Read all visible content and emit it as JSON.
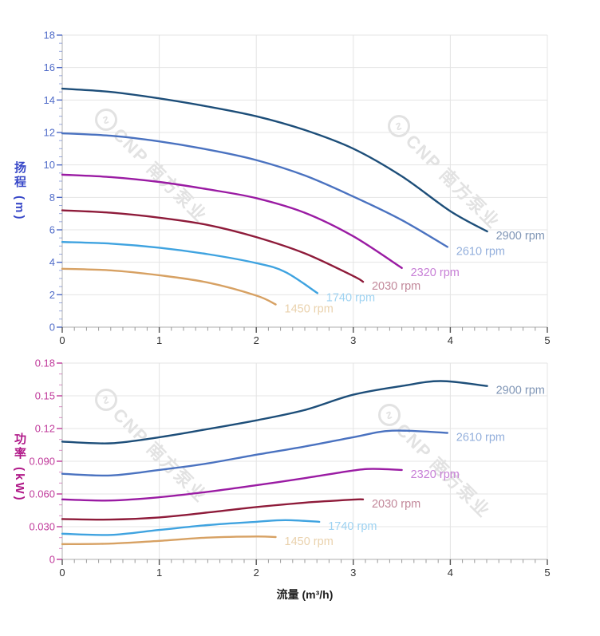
{
  "watermark": {
    "text": "CNP 南方泵业",
    "symbol": "∿"
  },
  "chart_data": [
    {
      "type": "line",
      "title": "",
      "xlabel": "流量 (m³/h)",
      "ylabel": "扬程 (m)",
      "xlim": [
        0,
        5
      ],
      "ylim": [
        0,
        18
      ],
      "x_ticks": [
        "0",
        "1",
        "2",
        "3",
        "4",
        "5"
      ],
      "x_tick_values": [
        0,
        1,
        2,
        3,
        4,
        5
      ],
      "x_minor_step": 0.125,
      "y_ticks": [
        "0",
        "2",
        "4",
        "6",
        "8",
        "10",
        "12",
        "14",
        "16",
        "18"
      ],
      "y_tick_values": [
        0,
        2,
        4,
        6,
        8,
        10,
        12,
        14,
        16,
        18
      ],
      "y_minor_step": 0.5,
      "grid": true,
      "legend_position": "at-line-ends",
      "axis_title_color": "#3848c8",
      "tick_color": "#4f6bc8",
      "tick_label_color": "#4f6bc8",
      "x_tick_label_color": "#333333",
      "series": [
        {
          "name": "2900 rpm",
          "color": "#1d4e79",
          "label_color": "#8096b6",
          "points": [
            [
              0,
              14.7
            ],
            [
              0.5,
              14.5
            ],
            [
              1,
              14.1
            ],
            [
              1.5,
              13.6
            ],
            [
              2,
              13.0
            ],
            [
              2.5,
              12.15
            ],
            [
              3,
              11.0
            ],
            [
              3.5,
              9.3
            ],
            [
              4,
              7.15
            ],
            [
              4.38,
              5.9
            ]
          ]
        },
        {
          "name": "2610 rpm",
          "color": "#4a72c0",
          "label_color": "#93afdc",
          "points": [
            [
              0,
              11.95
            ],
            [
              0.5,
              11.8
            ],
            [
              1,
              11.45
            ],
            [
              1.5,
              10.95
            ],
            [
              2,
              10.3
            ],
            [
              2.5,
              9.35
            ],
            [
              3,
              8.05
            ],
            [
              3.5,
              6.6
            ],
            [
              3.97,
              4.95
            ]
          ]
        },
        {
          "name": "2320 rpm",
          "color": "#9a1ba3",
          "label_color": "#c77fd6",
          "points": [
            [
              0,
              9.4
            ],
            [
              0.5,
              9.25
            ],
            [
              1,
              8.95
            ],
            [
              1.5,
              8.5
            ],
            [
              2,
              7.95
            ],
            [
              2.5,
              7.05
            ],
            [
              3,
              5.6
            ],
            [
              3.5,
              3.65
            ]
          ]
        },
        {
          "name": "2030 rpm",
          "color": "#8e1b3a",
          "label_color": "#c2889a",
          "points": [
            [
              0,
              7.2
            ],
            [
              0.5,
              7.05
            ],
            [
              1,
              6.75
            ],
            [
              1.5,
              6.3
            ],
            [
              2,
              5.55
            ],
            [
              2.5,
              4.55
            ],
            [
              3,
              3.15
            ],
            [
              3.1,
              2.8
            ]
          ]
        },
        {
          "name": "1740 rpm",
          "color": "#3fa3e0",
          "label_color": "#9fd3f2",
          "points": [
            [
              0,
              5.25
            ],
            [
              0.5,
              5.15
            ],
            [
              1,
              4.9
            ],
            [
              1.5,
              4.5
            ],
            [
              2,
              3.95
            ],
            [
              2.3,
              3.4
            ],
            [
              2.63,
              2.1
            ]
          ]
        },
        {
          "name": "1450 rpm",
          "color": "#d7a163",
          "label_color": "#ead2ad",
          "points": [
            [
              0,
              3.6
            ],
            [
              0.5,
              3.5
            ],
            [
              1,
              3.2
            ],
            [
              1.5,
              2.75
            ],
            [
              2,
              1.95
            ],
            [
              2.2,
              1.4
            ]
          ]
        }
      ]
    },
    {
      "type": "line",
      "title": "",
      "xlabel": "流量 (m³/h)",
      "ylabel": "功率 (kW)",
      "xlim": [
        0,
        5
      ],
      "ylim": [
        0,
        0.18
      ],
      "x_ticks": [
        "0",
        "1",
        "2",
        "3",
        "4",
        "5"
      ],
      "x_tick_values": [
        0,
        1,
        2,
        3,
        4,
        5
      ],
      "x_minor_step": 0.125,
      "y_ticks": [
        "0",
        "0.030",
        "0.060",
        "0.090",
        "0.12",
        "0.15",
        "0.18"
      ],
      "y_tick_values": [
        0,
        0.03,
        0.06,
        0.09,
        0.12,
        0.15,
        0.18
      ],
      "y_minor_step": 0.01,
      "grid": true,
      "legend_position": "at-line-ends",
      "axis_title_color": "#b01888",
      "tick_color": "#c03a9b",
      "tick_label_color": "#c03a9b",
      "x_tick_label_color": "#333333",
      "series": [
        {
          "name": "2900 rpm",
          "color": "#1d4e79",
          "label_color": "#8096b6",
          "points": [
            [
              0,
              0.108
            ],
            [
              0.5,
              0.1065
            ],
            [
              1,
              0.112
            ],
            [
              1.5,
              0.1195
            ],
            [
              2,
              0.1275
            ],
            [
              2.5,
              0.137
            ],
            [
              3,
              0.151
            ],
            [
              3.5,
              0.159
            ],
            [
              3.9,
              0.1635
            ],
            [
              4.38,
              0.159
            ]
          ]
        },
        {
          "name": "2610 rpm",
          "color": "#4a72c0",
          "label_color": "#93afdc",
          "points": [
            [
              0,
              0.0785
            ],
            [
              0.5,
              0.077
            ],
            [
              1,
              0.082
            ],
            [
              1.5,
              0.088
            ],
            [
              2,
              0.096
            ],
            [
              2.5,
              0.1035
            ],
            [
              3,
              0.112
            ],
            [
              3.4,
              0.118
            ],
            [
              3.97,
              0.116
            ]
          ]
        },
        {
          "name": "2320 rpm",
          "color": "#9a1ba3",
          "label_color": "#c77fd6",
          "points": [
            [
              0,
              0.055
            ],
            [
              0.5,
              0.054
            ],
            [
              1,
              0.057
            ],
            [
              1.5,
              0.062
            ],
            [
              2,
              0.068
            ],
            [
              2.5,
              0.0745
            ],
            [
              3,
              0.0815
            ],
            [
              3.2,
              0.083
            ],
            [
              3.5,
              0.082
            ]
          ]
        },
        {
          "name": "2030 rpm",
          "color": "#8e1b3a",
          "label_color": "#c2889a",
          "points": [
            [
              0,
              0.037
            ],
            [
              0.5,
              0.0365
            ],
            [
              1,
              0.0385
            ],
            [
              1.5,
              0.043
            ],
            [
              2,
              0.048
            ],
            [
              2.5,
              0.052
            ],
            [
              3,
              0.0548
            ],
            [
              3.1,
              0.055
            ]
          ]
        },
        {
          "name": "1740 rpm",
          "color": "#3fa3e0",
          "label_color": "#9fd3f2",
          "points": [
            [
              0,
              0.0235
            ],
            [
              0.5,
              0.0225
            ],
            [
              1,
              0.027
            ],
            [
              1.5,
              0.0315
            ],
            [
              2,
              0.0345
            ],
            [
              2.3,
              0.036
            ],
            [
              2.65,
              0.0345
            ]
          ]
        },
        {
          "name": "1450 rpm",
          "color": "#d7a163",
          "label_color": "#ead2ad",
          "points": [
            [
              0,
              0.014
            ],
            [
              0.5,
              0.0145
            ],
            [
              1,
              0.017
            ],
            [
              1.5,
              0.02
            ],
            [
              2,
              0.021
            ],
            [
              2.2,
              0.0205
            ]
          ]
        }
      ]
    }
  ]
}
